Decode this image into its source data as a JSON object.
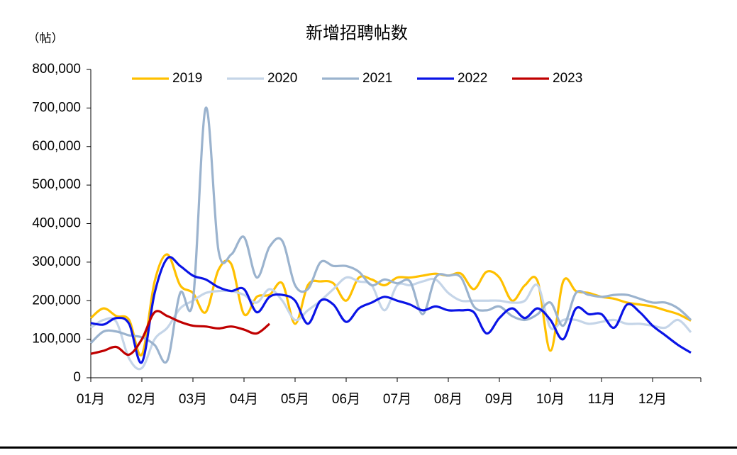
{
  "chart_data": {
    "type": "line",
    "title": "新增招聘帖数",
    "y_label": "（帖）",
    "categories": [
      "01月",
      null,
      null,
      null,
      "02月",
      null,
      null,
      null,
      "03月",
      null,
      null,
      null,
      "04月",
      null,
      null,
      null,
      "05月",
      null,
      null,
      null,
      "06月",
      null,
      null,
      null,
      "07月",
      null,
      null,
      null,
      "08月",
      null,
      null,
      null,
      "09月",
      null,
      null,
      null,
      "10月",
      null,
      null,
      null,
      "11月",
      null,
      null,
      null,
      "12月",
      null,
      null,
      null
    ],
    "ylim": [
      0,
      800000
    ],
    "yticks": [
      0,
      {
        "value": 100000,
        "label": "100,000"
      },
      {
        "value": 200000,
        "label": "200,000"
      },
      {
        "value": 300000,
        "label": "300,000"
      },
      {
        "value": 400000,
        "label": "400,000"
      },
      {
        "value": 500000,
        "label": "500,000"
      },
      {
        "value": 600000,
        "label": "600,000"
      },
      {
        "value": 700000,
        "label": "700,000"
      },
      {
        "value": 800000,
        "label": "800,000"
      }
    ],
    "grid": false,
    "legend": "top",
    "series": [
      {
        "name": "2019",
        "color": "#ffc000",
        "values": [
          155000,
          180000,
          160000,
          150000,
          60000,
          250000,
          320000,
          240000,
          220000,
          170000,
          280000,
          295000,
          165000,
          210000,
          215000,
          245000,
          140000,
          240000,
          250000,
          245000,
          200000,
          260000,
          255000,
          240000,
          260000,
          260000,
          265000,
          270000,
          265000,
          270000,
          230000,
          275000,
          260000,
          200000,
          240000,
          250000,
          70000,
          250000,
          225000,
          220000,
          210000,
          205000,
          195000,
          190000,
          185000,
          175000,
          165000,
          148000
        ]
      },
      {
        "name": "2020",
        "color": "#c5d5e8",
        "values": [
          130000,
          150000,
          145000,
          50000,
          25000,
          100000,
          130000,
          180000,
          200000,
          220000,
          225000,
          225000,
          215000,
          195000,
          230000,
          200000,
          150000,
          175000,
          200000,
          230000,
          260000,
          250000,
          240000,
          175000,
          240000,
          240000,
          250000,
          255000,
          220000,
          200000,
          200000,
          200000,
          200000,
          195000,
          200000,
          240000,
          130000,
          150000,
          150000,
          140000,
          145000,
          150000,
          140000,
          140000,
          135000,
          130000,
          150000,
          118000
        ]
      },
      {
        "name": "2021",
        "color": "#9bb3ce",
        "values": [
          90000,
          120000,
          120000,
          110000,
          105000,
          85000,
          45000,
          220000,
          200000,
          700000,
          330000,
          320000,
          365000,
          260000,
          340000,
          355000,
          240000,
          230000,
          300000,
          290000,
          290000,
          275000,
          240000,
          255000,
          245000,
          250000,
          165000,
          260000,
          265000,
          260000,
          185000,
          175000,
          185000,
          160000,
          150000,
          165000,
          195000,
          135000,
          220000,
          215000,
          210000,
          215000,
          215000,
          205000,
          195000,
          195000,
          180000,
          150000
        ]
      },
      {
        "name": "2022",
        "color": "#0a14e6",
        "values": [
          142000,
          138000,
          155000,
          140000,
          40000,
          220000,
          310000,
          290000,
          265000,
          255000,
          235000,
          225000,
          230000,
          170000,
          210000,
          215000,
          200000,
          140000,
          200000,
          190000,
          145000,
          180000,
          195000,
          210000,
          200000,
          190000,
          175000,
          185000,
          175000,
          175000,
          170000,
          115000,
          155000,
          180000,
          155000,
          180000,
          150000,
          100000,
          180000,
          165000,
          165000,
          130000,
          190000,
          170000,
          135000,
          110000,
          85000,
          65000
        ]
      },
      {
        "name": "2023",
        "color": "#c00000",
        "values": [
          62000,
          70000,
          80000,
          60000,
          100000,
          170000,
          160000,
          145000,
          135000,
          133000,
          128000,
          133000,
          125000,
          115000,
          140000,
          null,
          null,
          null,
          null,
          null,
          null,
          null,
          null,
          null,
          null,
          null,
          null,
          null,
          null,
          null,
          null,
          null,
          null,
          null,
          null,
          null,
          null,
          null,
          null,
          null,
          null,
          null,
          null,
          null,
          null,
          null,
          null,
          null
        ]
      }
    ]
  }
}
